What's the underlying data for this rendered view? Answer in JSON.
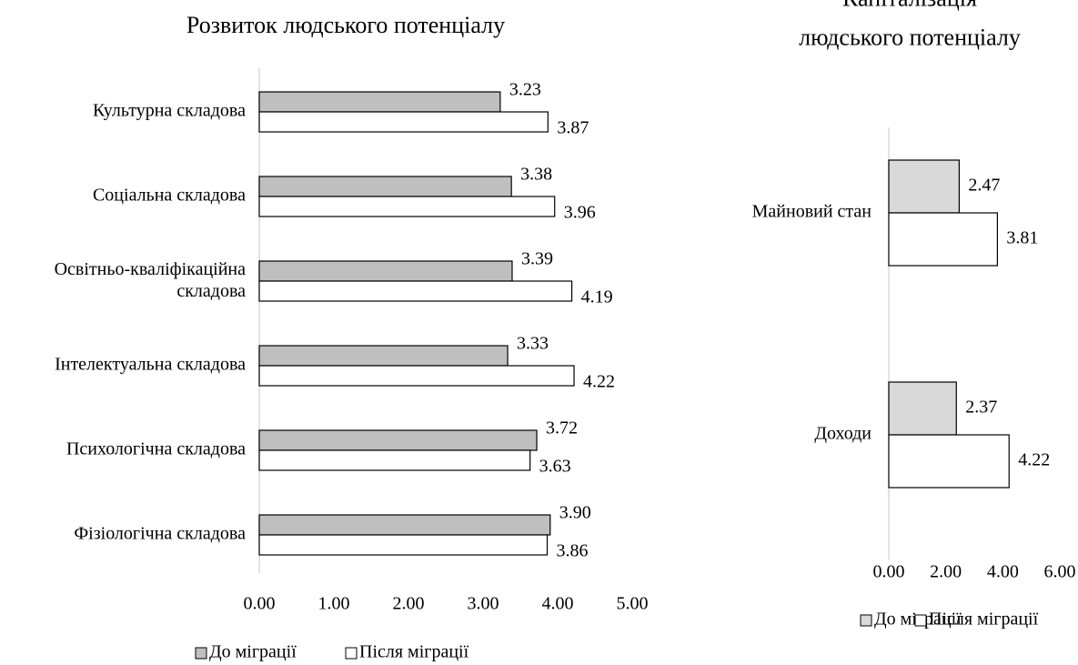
{
  "chart_data": [
    {
      "type": "bar",
      "orientation": "horizontal",
      "title": "Розвиток людського потенціалу",
      "categories": [
        "Культурна складова",
        "Соціальна складова",
        "Освітньо-кваліфікаційна складова",
        "Інтелектуальна складова",
        "Психологічна складова",
        "Фізіологічна складова"
      ],
      "series": [
        {
          "name": "До міграції",
          "color": "#bfbfbf",
          "values": [
            3.23,
            3.38,
            3.39,
            3.33,
            3.72,
            3.9
          ],
          "value_labels": [
            "3.23",
            "3.38",
            "3.39",
            "3.33",
            "3.72",
            "3.90"
          ]
        },
        {
          "name": "Після міграції",
          "color": "#ffffff",
          "values": [
            3.87,
            3.96,
            4.19,
            4.22,
            3.63,
            3.86
          ],
          "value_labels": [
            "3.87",
            "3.96",
            "4.19",
            "4.22",
            "3.63",
            "3.86"
          ]
        }
      ],
      "xlim": [
        0,
        5
      ],
      "xticks": [
        {
          "value": 0,
          "label": "0.00"
        },
        {
          "value": 1,
          "label": "1.00"
        },
        {
          "value": 2,
          "label": "2.00"
        },
        {
          "value": 3,
          "label": "3.00"
        },
        {
          "value": 4,
          "label": "4.00"
        },
        {
          "value": 5,
          "label": "5.00"
        }
      ],
      "legend": "bottom"
    },
    {
      "type": "bar",
      "orientation": "horizontal",
      "title": "Капіталізація людського потенціалу",
      "categories": [
        "Майновий стан",
        "Доходи"
      ],
      "series": [
        {
          "name": "До міграції",
          "color": "#d9d9d9",
          "values": [
            2.47,
            2.37
          ],
          "value_labels": [
            "2.47",
            "2.37"
          ]
        },
        {
          "name": "Після міграції",
          "color": "#ffffff",
          "values": [
            3.81,
            4.22
          ],
          "value_labels": [
            "3.81",
            "4.22"
          ]
        }
      ],
      "xlim": [
        0,
        6
      ],
      "xticks": [
        {
          "value": 0,
          "label": "0.00"
        },
        {
          "value": 2,
          "label": "2.00"
        },
        {
          "value": 4,
          "label": "4.00"
        },
        {
          "value": 6,
          "label": "6.00"
        }
      ],
      "legend": "bottom"
    }
  ]
}
